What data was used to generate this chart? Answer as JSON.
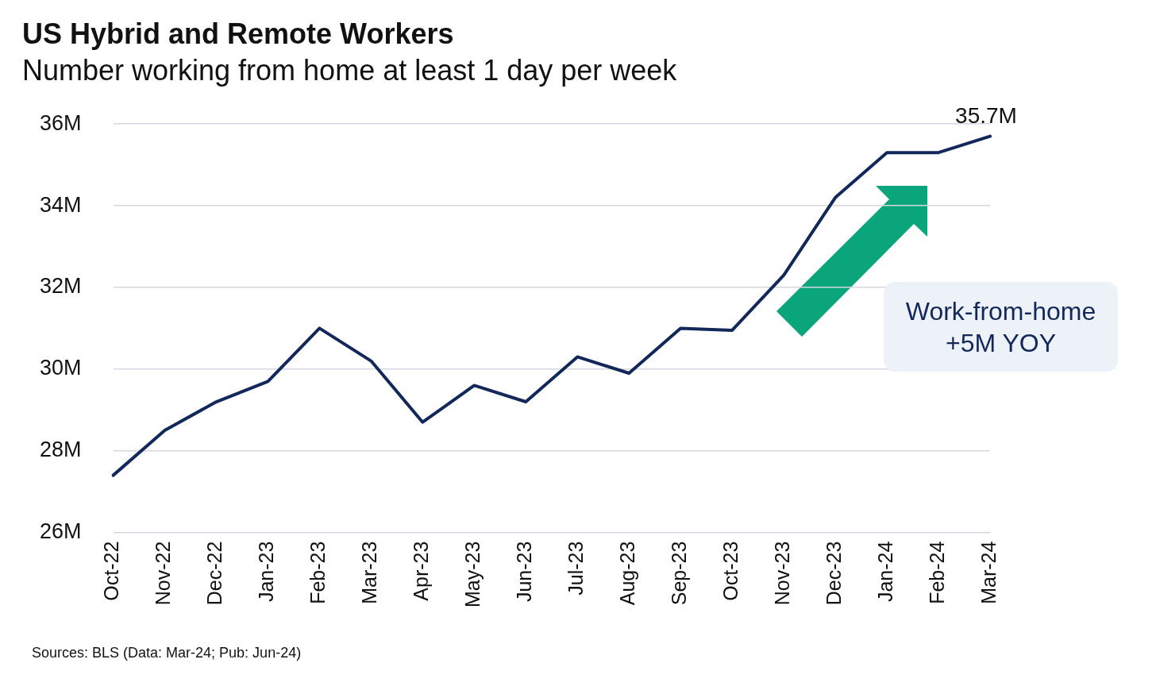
{
  "chart_data": {
    "type": "line",
    "title": "US Hybrid and Remote Workers",
    "subtitle": "Number working from home at least 1 day per week",
    "categories": [
      "Oct-22",
      "Nov-22",
      "Dec-22",
      "Jan-23",
      "Feb-23",
      "Mar-23",
      "Apr-23",
      "May-23",
      "Jun-23",
      "Jul-23",
      "Aug-23",
      "Sep-23",
      "Oct-23",
      "Nov-23",
      "Dec-23",
      "Jan-24",
      "Feb-24",
      "Mar-24"
    ],
    "series": [
      {
        "color": "#13285a",
        "values": [
          27.4,
          28.5,
          29.2,
          29.7,
          31.0,
          30.2,
          28.7,
          29.6,
          29.2,
          30.3,
          29.9,
          31.0,
          30.95,
          32.3,
          34.2,
          35.3,
          35.3,
          35.7
        ]
      }
    ],
    "ylim": [
      26,
      36
    ],
    "yticks": [
      {
        "value": 26,
        "label": "26M"
      },
      {
        "value": 28,
        "label": "28M"
      },
      {
        "value": 30,
        "label": "30M"
      },
      {
        "value": 32,
        "label": "32M"
      },
      {
        "value": 34,
        "label": "34M"
      },
      {
        "value": 36,
        "label": "36M"
      }
    ],
    "grid": "y",
    "legend": false,
    "marker": "none",
    "line_style": "solid",
    "annotations": [
      {
        "text": "35.7M",
        "x": "Mar-24",
        "y": 35.7
      },
      "Work-from-home\n+5M YOY",
      "Sources: BLS (Data: Mar-24; Pub: Jun-24)"
    ]
  }
}
